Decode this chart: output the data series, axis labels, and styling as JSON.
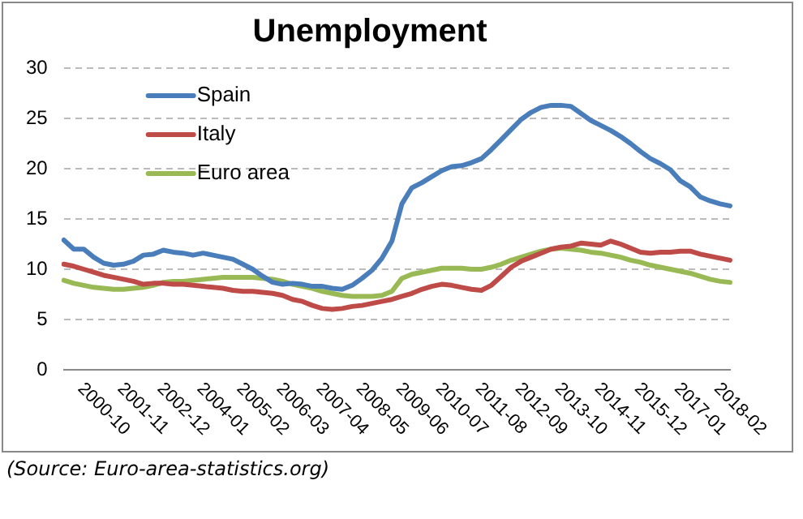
{
  "chart_data": {
    "type": "line",
    "title": "Unemployment",
    "categories": [
      null,
      null,
      "2000-10",
      null,
      null,
      null,
      "2001-11",
      null,
      null,
      null,
      "2002-12",
      null,
      null,
      null,
      "2004-01",
      null,
      null,
      null,
      "2005-02",
      null,
      null,
      null,
      "2006-03",
      null,
      null,
      null,
      "2007-04",
      null,
      null,
      null,
      "2008-05",
      null,
      null,
      null,
      "2009-06",
      null,
      null,
      null,
      "2010-07",
      null,
      null,
      null,
      "2011-08",
      null,
      null,
      null,
      "2012-09",
      null,
      null,
      null,
      "2013-10",
      null,
      null,
      null,
      "2014-11",
      null,
      null,
      null,
      "2015-12",
      null,
      null,
      null,
      "2017-01",
      null,
      null,
      null,
      "2018-02",
      null
    ],
    "series": [
      {
        "name": "Spain",
        "color": "#4a7ebb",
        "values": [
          12.9,
          12.0,
          12.0,
          11.2,
          10.6,
          10.4,
          10.5,
          10.8,
          11.4,
          11.5,
          11.9,
          11.7,
          11.6,
          11.4,
          11.6,
          11.4,
          11.2,
          11.0,
          10.5,
          10.0,
          9.3,
          8.7,
          8.5,
          8.6,
          8.5,
          8.3,
          8.3,
          8.1,
          8.0,
          8.4,
          9.1,
          9.9,
          11.1,
          12.8,
          16.5,
          18.1,
          18.6,
          19.2,
          19.8,
          20.2,
          20.3,
          20.6,
          21.0,
          21.9,
          22.9,
          23.9,
          24.9,
          25.6,
          26.1,
          26.3,
          26.3,
          26.2,
          25.5,
          24.8,
          24.3,
          23.8,
          23.2,
          22.5,
          21.7,
          21.0,
          20.5,
          19.9,
          18.8,
          18.2,
          17.2,
          16.8,
          16.5,
          16.3
        ]
      },
      {
        "name": "Italy",
        "color": "#be4b48",
        "values": [
          10.5,
          10.3,
          10.0,
          9.7,
          9.4,
          9.2,
          9.0,
          8.8,
          8.5,
          8.6,
          8.6,
          8.5,
          8.5,
          8.4,
          8.3,
          8.2,
          8.1,
          7.9,
          7.8,
          7.8,
          7.7,
          7.6,
          7.4,
          7.0,
          6.8,
          6.4,
          6.1,
          6.0,
          6.1,
          6.3,
          6.4,
          6.6,
          6.8,
          7.0,
          7.3,
          7.6,
          8.0,
          8.3,
          8.5,
          8.4,
          8.2,
          8.0,
          7.9,
          8.4,
          9.3,
          10.2,
          10.8,
          11.2,
          11.6,
          12.0,
          12.2,
          12.3,
          12.6,
          12.5,
          12.4,
          12.8,
          12.5,
          12.1,
          11.7,
          11.6,
          11.7,
          11.7,
          11.8,
          11.8,
          11.5,
          11.3,
          11.1,
          10.9
        ]
      },
      {
        "name": "Euro area",
        "color": "#98b954",
        "values": [
          8.9,
          8.6,
          8.4,
          8.2,
          8.1,
          8.0,
          8.0,
          8.1,
          8.2,
          8.4,
          8.7,
          8.8,
          8.8,
          8.9,
          9.0,
          9.1,
          9.2,
          9.2,
          9.2,
          9.2,
          9.1,
          9.0,
          8.8,
          8.5,
          8.3,
          8.1,
          7.8,
          7.6,
          7.4,
          7.3,
          7.3,
          7.3,
          7.4,
          7.8,
          9.1,
          9.5,
          9.7,
          9.9,
          10.1,
          10.1,
          10.1,
          10.0,
          10.0,
          10.2,
          10.5,
          10.9,
          11.2,
          11.5,
          11.8,
          12.0,
          12.1,
          12.0,
          11.9,
          11.7,
          11.6,
          11.4,
          11.2,
          10.9,
          10.7,
          10.4,
          10.2,
          10.0,
          9.8,
          9.6,
          9.3,
          9.0,
          8.8,
          8.7
        ]
      }
    ],
    "ylim": [
      0,
      30
    ],
    "yticks": [
      0,
      5,
      10,
      15,
      20,
      25,
      30
    ],
    "grid": "y",
    "legend": "top left",
    "marker": "none",
    "line_style": "solid",
    "annotations": [
      "(Source: Euro-area-statistics.org)"
    ]
  }
}
